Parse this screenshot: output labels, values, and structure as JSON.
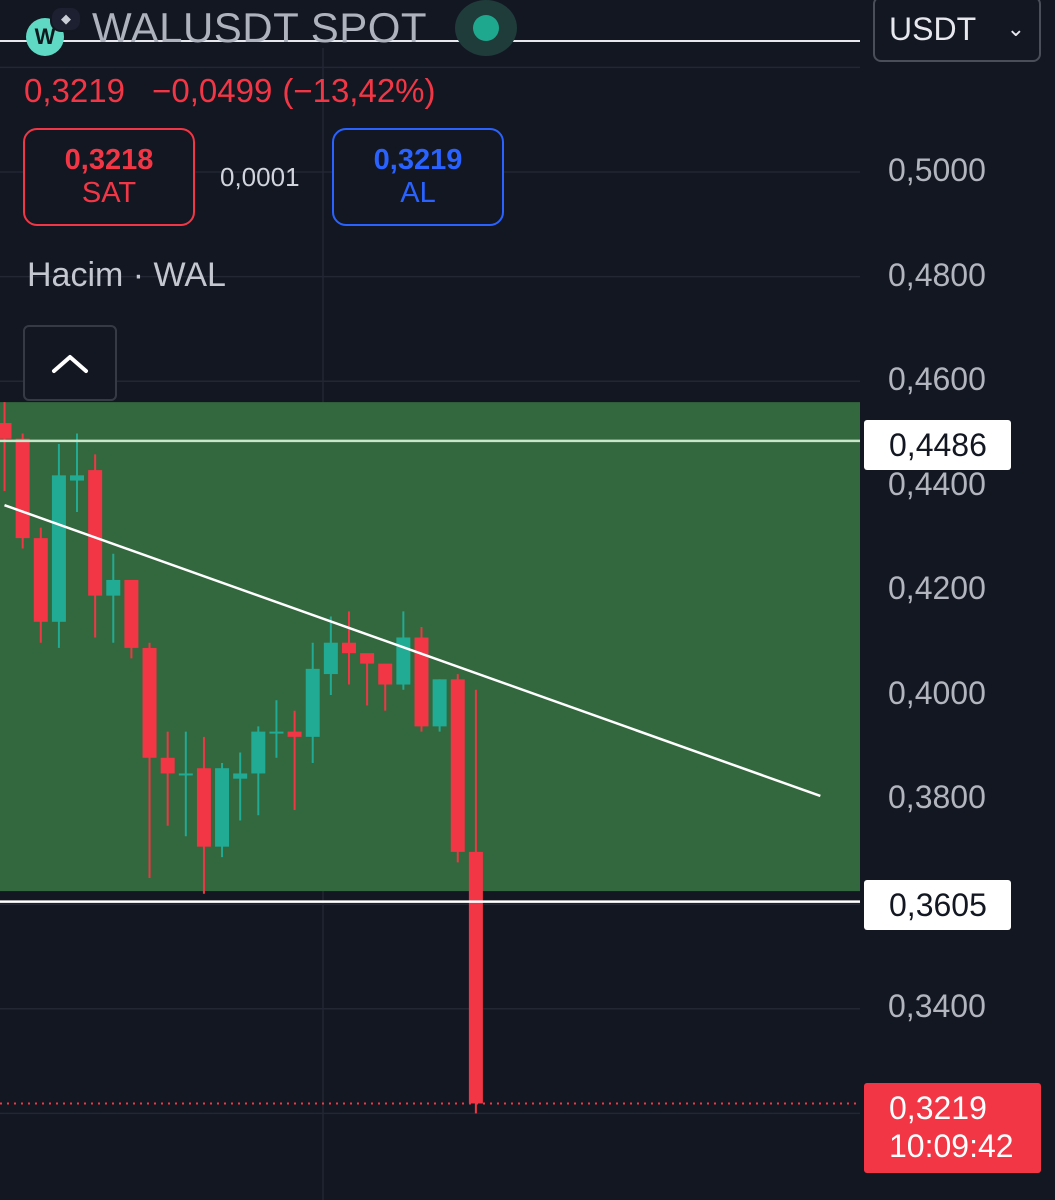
{
  "header": {
    "symbol_title": "WALUSDT SPOT",
    "logo_letter": "W",
    "status_color": "#1ea88d",
    "currency": {
      "selected": "USDT"
    }
  },
  "quote": {
    "last_price": "0,3219",
    "change": "−0,0499",
    "change_pct": "(−13,42%)",
    "sell": {
      "price": "0,3218",
      "label": "SAT"
    },
    "spread": "0,0001",
    "buy": {
      "price": "0,3219",
      "label": "AL"
    }
  },
  "indicator": {
    "volume_label": "Hacim · WAL"
  },
  "colors": {
    "background": "#131722",
    "up": "#22ab94",
    "down": "#f23645",
    "zone": "#33673d",
    "buy_blue": "#2962ff"
  },
  "chart_data": {
    "type": "candlestick",
    "y_axis_labels": [
      "0,5000",
      "0,4800",
      "0,4600",
      "0,4400",
      "0,4200",
      "0,4000",
      "0,3800",
      "0,3400"
    ],
    "ylim": [
      0.315,
      0.515
    ],
    "zone": {
      "low": 0.3625,
      "high": 0.456
    },
    "horizontal_lines": [
      {
        "value": 0.4486,
        "label": "0,4486"
      },
      {
        "value": 0.3605,
        "label": "0,3605"
      }
    ],
    "trendline": {
      "from": [
        0,
        0.4363
      ],
      "to": [
        45,
        0.3807
      ]
    },
    "last_price": {
      "value": 0.3219,
      "label": "0,3219",
      "countdown": "10:09:42"
    },
    "candles": [
      {
        "o": 0.452,
        "h": 0.456,
        "l": 0.439,
        "c": 0.449
      },
      {
        "o": 0.449,
        "h": 0.45,
        "l": 0.428,
        "c": 0.43
      },
      {
        "o": 0.43,
        "h": 0.432,
        "l": 0.41,
        "c": 0.414
      },
      {
        "o": 0.414,
        "h": 0.448,
        "l": 0.409,
        "c": 0.442
      },
      {
        "o": 0.441,
        "h": 0.45,
        "l": 0.435,
        "c": 0.442
      },
      {
        "o": 0.443,
        "h": 0.446,
        "l": 0.411,
        "c": 0.419
      },
      {
        "o": 0.419,
        "h": 0.427,
        "l": 0.41,
        "c": 0.422
      },
      {
        "o": 0.422,
        "h": 0.421,
        "l": 0.407,
        "c": 0.409
      },
      {
        "o": 0.409,
        "h": 0.41,
        "l": 0.365,
        "c": 0.388
      },
      {
        "o": 0.388,
        "h": 0.393,
        "l": 0.375,
        "c": 0.385
      },
      {
        "o": 0.385,
        "h": 0.393,
        "l": 0.373,
        "c": 0.385
      },
      {
        "o": 0.386,
        "h": 0.392,
        "l": 0.362,
        "c": 0.371
      },
      {
        "o": 0.371,
        "h": 0.387,
        "l": 0.369,
        "c": 0.386
      },
      {
        "o": 0.384,
        "h": 0.389,
        "l": 0.376,
        "c": 0.385
      },
      {
        "o": 0.385,
        "h": 0.394,
        "l": 0.377,
        "c": 0.393
      },
      {
        "o": 0.393,
        "h": 0.399,
        "l": 0.388,
        "c": 0.393
      },
      {
        "o": 0.393,
        "h": 0.397,
        "l": 0.378,
        "c": 0.392
      },
      {
        "o": 0.392,
        "h": 0.41,
        "l": 0.387,
        "c": 0.405
      },
      {
        "o": 0.404,
        "h": 0.415,
        "l": 0.4,
        "c": 0.41
      },
      {
        "o": 0.41,
        "h": 0.416,
        "l": 0.402,
        "c": 0.408
      },
      {
        "o": 0.408,
        "h": 0.407,
        "l": 0.398,
        "c": 0.406
      },
      {
        "o": 0.406,
        "h": 0.405,
        "l": 0.397,
        "c": 0.402
      },
      {
        "o": 0.402,
        "h": 0.416,
        "l": 0.401,
        "c": 0.411
      },
      {
        "o": 0.411,
        "h": 0.413,
        "l": 0.393,
        "c": 0.394
      },
      {
        "o": 0.394,
        "h": 0.403,
        "l": 0.393,
        "c": 0.403
      },
      {
        "o": 0.403,
        "h": 0.404,
        "l": 0.368,
        "c": 0.37
      },
      {
        "o": 0.37,
        "h": 0.401,
        "l": 0.32,
        "c": 0.3219
      }
    ]
  }
}
